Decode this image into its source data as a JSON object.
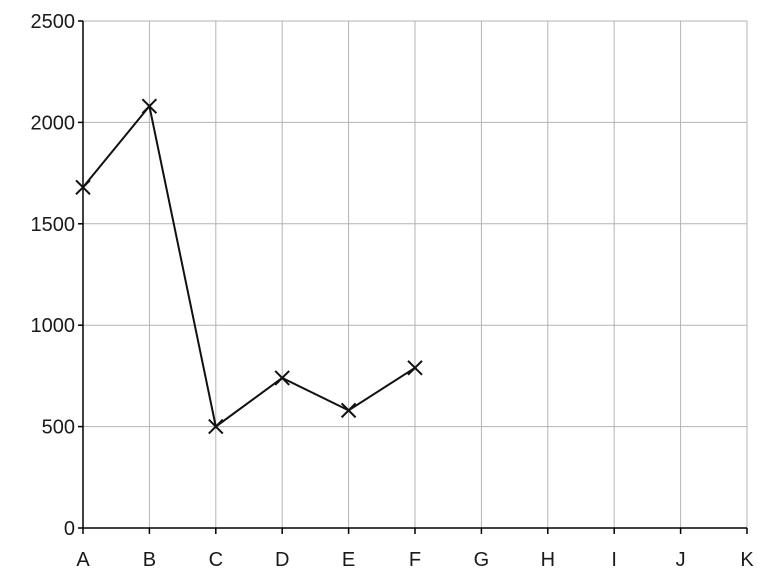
{
  "chart_data": {
    "type": "line",
    "categories": [
      "A",
      "B",
      "C",
      "D",
      "E",
      "F",
      "G",
      "H",
      "I",
      "J",
      "K"
    ],
    "series": [
      {
        "values": [
          1680,
          2080,
          500,
          740,
          580,
          790,
          null,
          null,
          null,
          null,
          null
        ]
      }
    ],
    "y_ticks": [
      "0",
      "500",
      "1000",
      "1500",
      "2000",
      "2500"
    ],
    "ylim": [
      0,
      2500
    ],
    "grid": true,
    "marker": "cross",
    "title": "",
    "xlabel": "",
    "ylabel": ""
  }
}
